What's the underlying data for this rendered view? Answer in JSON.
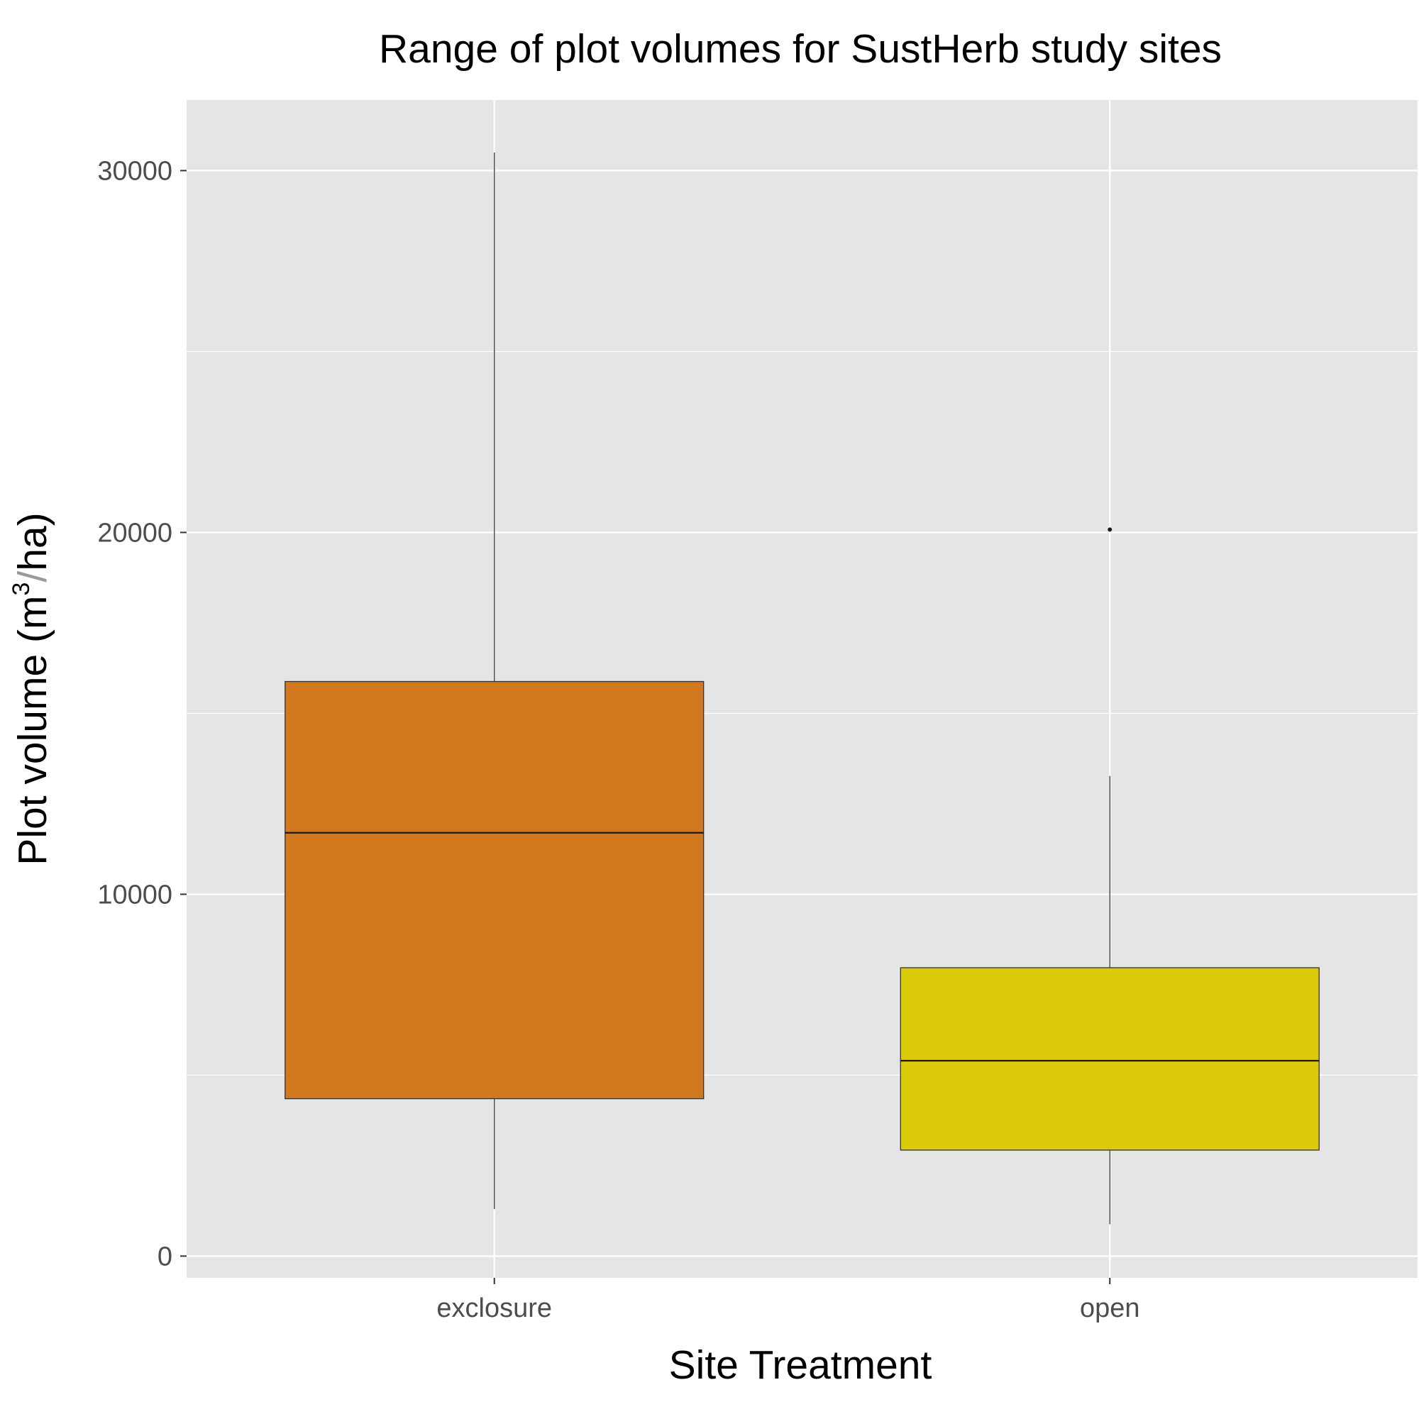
{
  "chart_data": {
    "type": "boxplot",
    "title": "Range of plot volumes for SustHerb study sites",
    "xlabel": "Site Treatment",
    "ylabel": {
      "prefix": "Plot volume ",
      "open": "(",
      "base": "m",
      "sup": "3",
      "slash": "/",
      "unit": "ha",
      "close": ")"
    },
    "categories": [
      "exclosure",
      "open"
    ],
    "boxes": [
      {
        "category": "exclosure",
        "whisker_low": 1300,
        "q1": 4350,
        "median": 11700,
        "q3": 15880,
        "whisker_high": 30500,
        "outliers": [],
        "fill": "#D27920"
      },
      {
        "category": "open",
        "whisker_low": 880,
        "q1": 2930,
        "median": 5400,
        "q3": 7970,
        "whisker_high": 13270,
        "outliers": [
          20080
        ],
        "fill": "#DBCB0B"
      }
    ],
    "y_ticks": [
      0,
      10000,
      20000,
      30000
    ],
    "y_tick_labels": [
      "0",
      "10000",
      "20000",
      "30000"
    ],
    "ylim": [
      -600,
      31950
    ],
    "grid": true,
    "panel_background": "#E5E5E5",
    "grid_color": "#FFFFFF"
  }
}
